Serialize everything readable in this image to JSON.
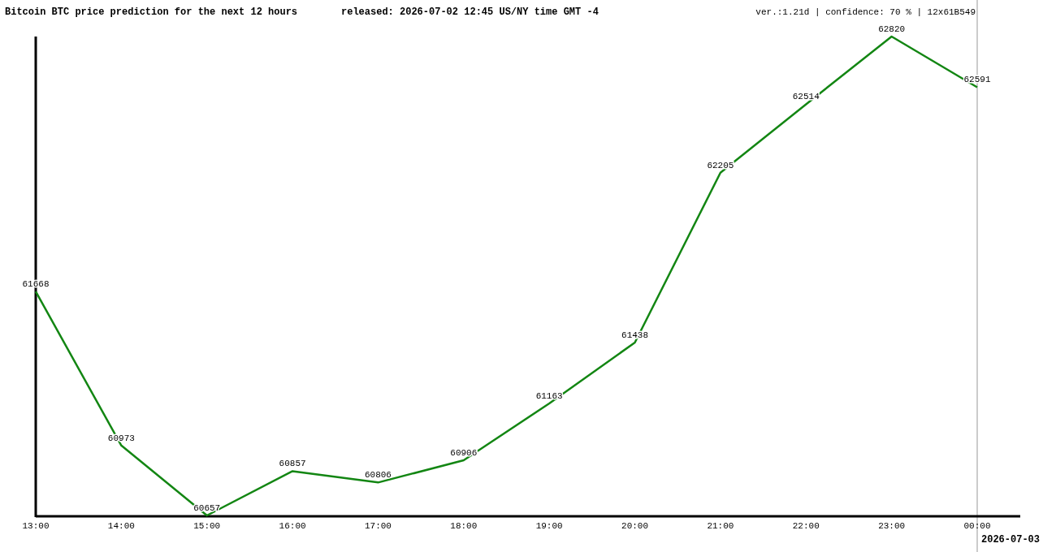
{
  "chart_data": {
    "type": "line",
    "title": "Bitcoin BTC price prediction for the next 12 hours",
    "subtitle": "released: 2026-07-02 12:45 US/NY time GMT -4",
    "annotations": [
      "ver.:1.21d | confidence: 70 % | 12x61B549"
    ],
    "categories": [
      "13:00",
      "14:00",
      "15:00",
      "16:00",
      "17:00",
      "18:00",
      "19:00",
      "20:00",
      "21:00",
      "22:00",
      "23:00",
      "00:00"
    ],
    "series": [
      {
        "color": "#138613",
        "values": [
          61668,
          60973,
          60657,
          60857,
          60806,
          60906,
          61163,
          61438,
          62205,
          62514,
          62820,
          62591
        ]
      }
    ],
    "data_labels": true,
    "marker": "none",
    "line_style": "solid",
    "ref_lines": [
      {
        "axis": "x",
        "value": "00:00",
        "label": "2026-07-03",
        "color": "#999999"
      }
    ]
  }
}
